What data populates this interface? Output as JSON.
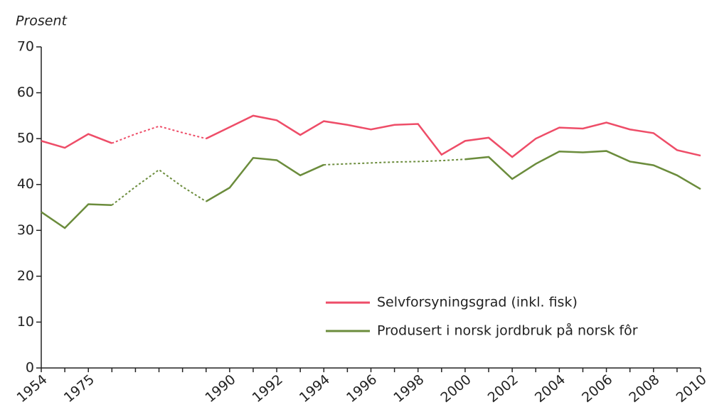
{
  "chart_data": {
    "type": "line",
    "y_label": "Prosent",
    "categories": [
      "1954",
      null,
      "1975",
      null,
      null,
      null,
      null,
      null,
      "1990",
      null,
      "1992",
      null,
      "1994",
      null,
      "1996",
      null,
      "1998",
      null,
      "2000",
      null,
      "2002",
      null,
      "2004",
      null,
      "2006",
      null,
      "2008",
      null,
      "2010"
    ],
    "series": [
      {
        "name": "Selvforsyningsgrad (inkl. fisk)",
        "color": "#ee4d68",
        "values": [
          49.5,
          48,
          51,
          49,
          51,
          52.7,
          51.3,
          50,
          52.5,
          55,
          54,
          50.8,
          53.8,
          53,
          52,
          53,
          53.2,
          46.5,
          49.5,
          50.2,
          46,
          50,
          52.4,
          52.2,
          53.5,
          52,
          51.2,
          47.5,
          46.3
        ],
        "dashed_ranges": [
          [
            3,
            7
          ]
        ]
      },
      {
        "name": "Produsert i norsk jordbruk på norsk fôr",
        "color": "#6b8c3c",
        "values": [
          34,
          30.5,
          35.7,
          35.5,
          39.5,
          43.2,
          39.5,
          36.3,
          39.3,
          45.8,
          45.3,
          42,
          44.3,
          44.5,
          44.7,
          44.9,
          45,
          45.2,
          45.5,
          46,
          41.2,
          44.5,
          47.2,
          47,
          47.3,
          45,
          44.2,
          42,
          39
        ],
        "dashed_ranges": [
          [
            3,
            7
          ],
          [
            12,
            18
          ]
        ]
      }
    ],
    "ylim": [
      0,
      70
    ],
    "yticks": [
      0,
      10,
      20,
      30,
      40,
      50,
      60,
      70
    ],
    "legend": "lower right"
  }
}
